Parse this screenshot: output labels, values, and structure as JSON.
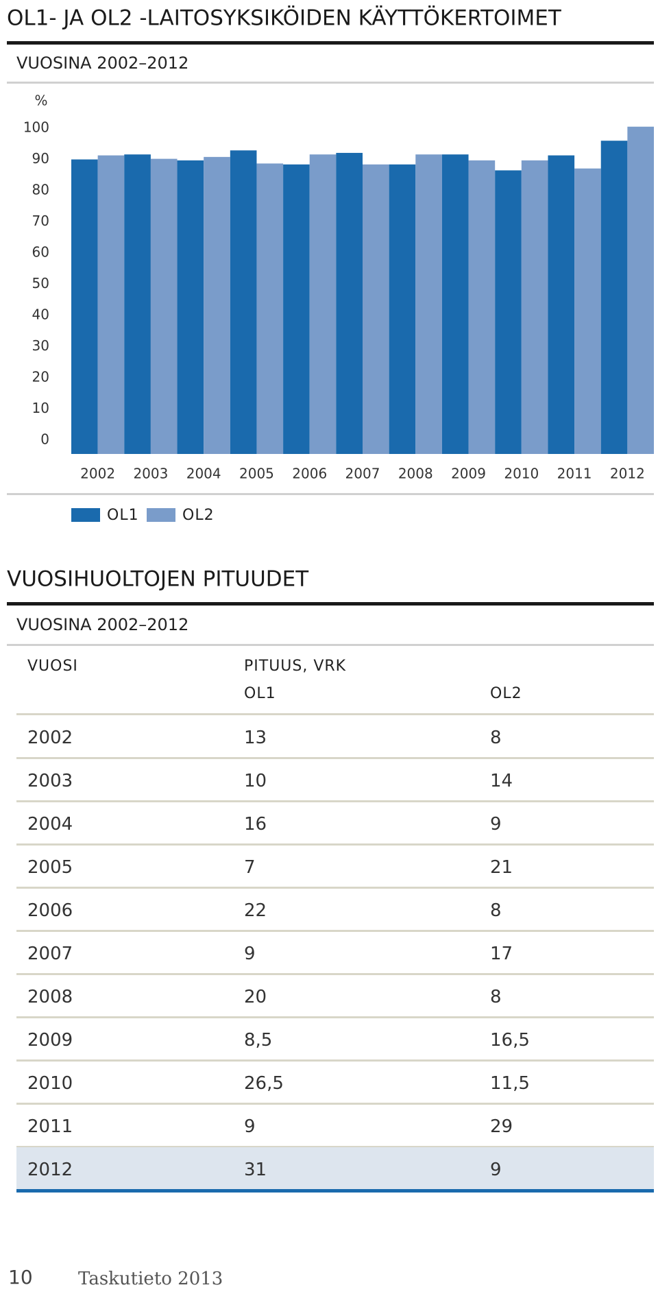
{
  "header": {
    "title": "OL1- JA OL2 -LAITOSYKSIKÖIDEN KÄYTTÖKERTOIMET",
    "subtitle": "VUOSINA 2002–2012"
  },
  "chart_data": {
    "type": "bar",
    "y_label": "%",
    "categories": [
      "2002",
      "2003",
      "2004",
      "2005",
      "2006",
      "2007",
      "2008",
      "2009",
      "2010",
      "2011",
      "2012"
    ],
    "series": [
      {
        "name": "OL1",
        "color": "#1a6aad",
        "values": [
          90.0,
          91.6,
          89.7,
          92.9,
          88.4,
          92.1,
          88.4,
          91.6,
          86.5,
          91.3,
          96.0
        ]
      },
      {
        "name": "OL2",
        "color": "#7a9cca",
        "values": [
          91.3,
          90.2,
          90.8,
          88.7,
          91.6,
          88.4,
          91.6,
          89.7,
          89.7,
          87.1,
          100.5
        ]
      }
    ],
    "ylim": [
      0,
      100
    ],
    "yticks": [
      0,
      10,
      20,
      30,
      40,
      50,
      60,
      70,
      80,
      90,
      100
    ],
    "grid": false
  },
  "section": {
    "title": "VUOSIHUOLTOJEN PITUUDET",
    "subtitle": "VUOSINA 2002–2012"
  },
  "table": {
    "header": {
      "year": "VUOSI",
      "group": "PITUUS, VRK",
      "col1": "OL1",
      "col2": "OL2"
    },
    "rows": [
      [
        "2002",
        "13",
        "8"
      ],
      [
        "2003",
        "10",
        "14"
      ],
      [
        "2004",
        "16",
        "9"
      ],
      [
        "2005",
        "7",
        "21"
      ],
      [
        "2006",
        "22",
        "8"
      ],
      [
        "2007",
        "9",
        "17"
      ],
      [
        "2008",
        "20",
        "8"
      ],
      [
        "2009",
        "8,5",
        "16,5"
      ],
      [
        "2010",
        "26,5",
        "11,5"
      ],
      [
        "2011",
        "9",
        "29"
      ],
      [
        "2012",
        "31",
        "9"
      ]
    ]
  },
  "footer": {
    "page": "10",
    "publication": "Taskutieto 2013"
  }
}
